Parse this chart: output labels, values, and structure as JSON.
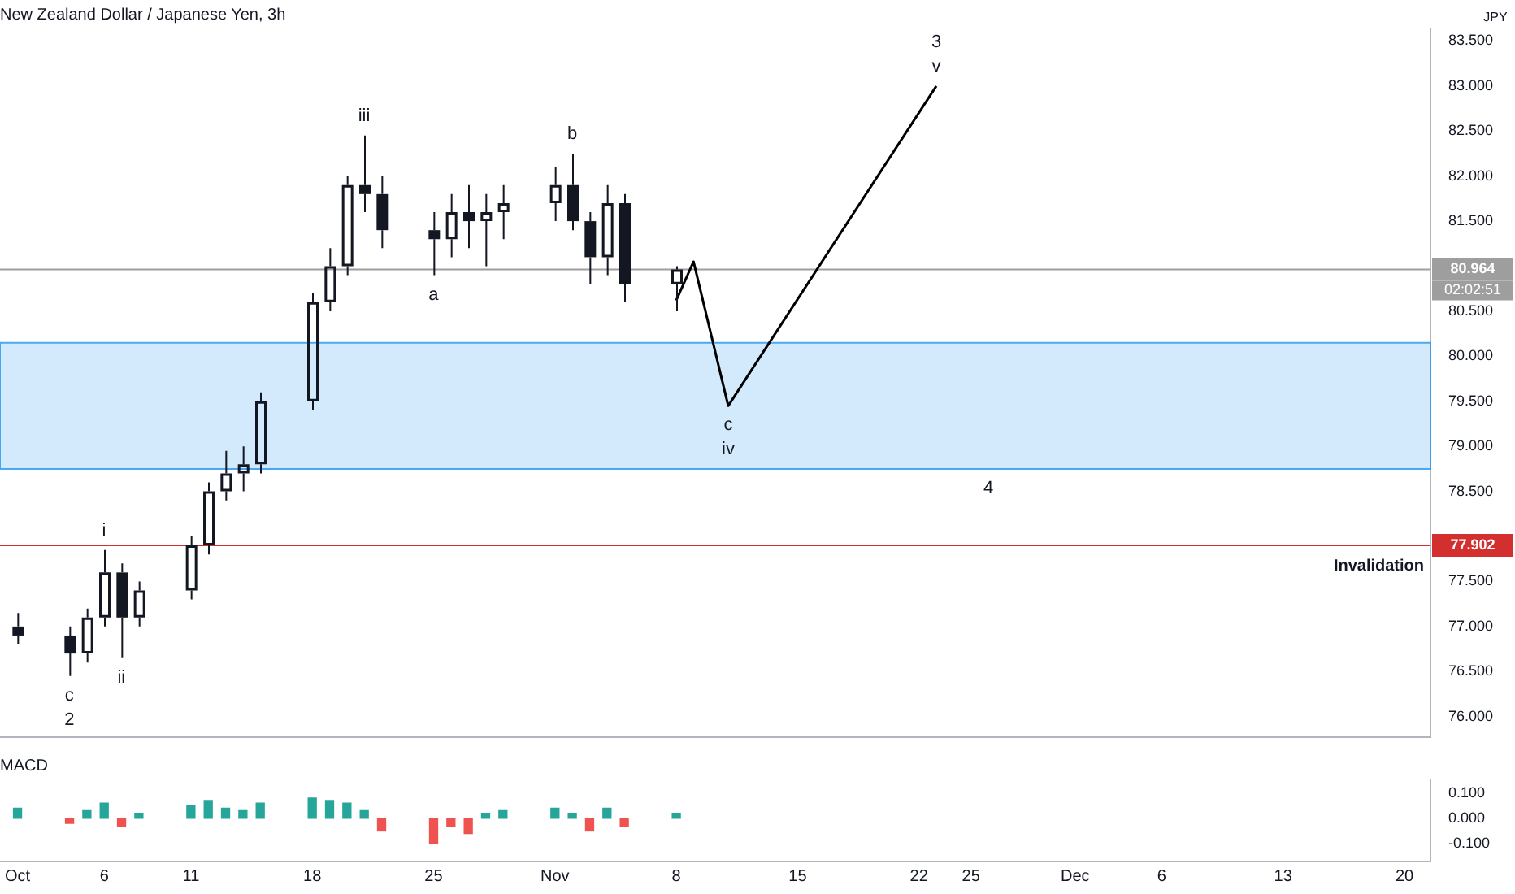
{
  "chart_data": [
    {
      "type": "candlestick",
      "title": "New Zealand Dollar / Japanese Yen, 3h",
      "ylabel": "JPY",
      "xlim": [
        "--09-30",
        "--12-21T12:00"
      ],
      "tick_labels": "y",
      "ylim": [
        75.77,
        83.63
      ],
      "yticks": [
        {
          "value": 76,
          "label": "76.000"
        },
        {
          "value": 76.5,
          "label": "76.500"
        },
        {
          "value": 77,
          "label": "77.000"
        },
        {
          "value": 77.5,
          "label": "77.500"
        },
        {
          "value": 78.5,
          "label": "78.500"
        },
        {
          "value": 79,
          "label": "79.000"
        },
        {
          "value": 79.5,
          "label": "79.500"
        },
        {
          "value": 80,
          "label": "80.000"
        },
        {
          "value": 80.5,
          "label": "80.500"
        },
        {
          "value": 81.5,
          "label": "81.500"
        },
        {
          "value": 82,
          "label": "82.000"
        },
        {
          "value": 82.5,
          "label": "82.500"
        },
        {
          "value": 83,
          "label": "83.000"
        },
        {
          "value": 83.5,
          "label": "83.500"
        }
      ],
      "grid": false,
      "legend": false,
      "series": [
        {
          "type": "candlestick",
          "color": "#131722",
          "x": [
            "--10-01",
            "--10-04",
            "--10-05",
            "--10-06",
            "--10-07",
            "--10-08",
            "--10-11",
            "--10-12",
            "--10-13",
            "--10-14",
            "--10-15",
            "--10-18",
            "--10-19",
            "--10-20",
            "--10-21",
            "--10-22",
            "--10-25",
            "--10-26",
            "--10-27",
            "--10-28",
            "--10-29",
            "--11-01",
            "--11-02",
            "--11-03",
            "--11-04",
            "--11-05",
            "--11-08"
          ],
          "ohlc": [
            [
              77.0,
              77.15,
              76.8,
              76.9
            ],
            [
              76.9,
              77.0,
              76.45,
              76.7
            ],
            [
              76.7,
              77.2,
              76.6,
              77.1
            ],
            [
              77.1,
              77.85,
              77.0,
              77.6
            ],
            [
              77.6,
              77.7,
              76.65,
              77.1
            ],
            [
              77.1,
              77.5,
              77.0,
              77.4
            ],
            [
              77.4,
              78.0,
              77.3,
              77.9
            ],
            [
              77.9,
              78.6,
              77.8,
              78.5
            ],
            [
              78.5,
              78.95,
              78.4,
              78.7
            ],
            [
              78.7,
              79.0,
              78.5,
              78.8
            ],
            [
              78.8,
              79.6,
              78.7,
              79.5
            ],
            [
              79.5,
              80.7,
              79.4,
              80.6
            ],
            [
              80.6,
              81.2,
              80.5,
              81.0
            ],
            [
              81.0,
              82.0,
              80.9,
              81.9
            ],
            [
              81.9,
              82.45,
              81.6,
              81.8
            ],
            [
              81.8,
              82.0,
              81.2,
              81.4
            ],
            [
              81.4,
              81.6,
              80.9,
              81.3
            ],
            [
              81.3,
              81.8,
              81.1,
              81.6
            ],
            [
              81.6,
              81.9,
              81.2,
              81.5
            ],
            [
              81.5,
              81.8,
              81.0,
              81.6
            ],
            [
              81.6,
              81.9,
              81.3,
              81.7
            ],
            [
              81.7,
              82.1,
              81.5,
              81.9
            ],
            [
              81.9,
              82.25,
              81.4,
              81.5
            ],
            [
              81.5,
              81.6,
              80.8,
              81.1
            ],
            [
              81.1,
              81.9,
              80.9,
              81.7
            ],
            [
              81.7,
              81.8,
              80.6,
              80.8
            ],
            [
              80.8,
              81.0,
              80.5,
              80.964
            ]
          ]
        },
        {
          "type": "line",
          "color": "#000000",
          "marker": "none",
          "line_style": "solid",
          "x": [
            "--11-08",
            "--11-09",
            "--11-11",
            "--11-23"
          ],
          "values": [
            80.62,
            81.05,
            79.45,
            83.0
          ]
        }
      ],
      "bands": [
        {
          "axis": "y",
          "from": 78.75,
          "to": 80.15,
          "color": "#2196f3"
        }
      ],
      "ref_lines": [
        {
          "axis": "y",
          "value": 80.964,
          "label": "80.964",
          "color": "#9e9e9e"
        },
        {
          "axis": "y",
          "value": 77.902,
          "label": "77.902",
          "color": "#d32f2f"
        }
      ],
      "annotations": [
        "02:02:51",
        "Invalidation",
        {
          "text": "iii",
          "x": "--10-21",
          "y": 82.45
        },
        {
          "text": "b",
          "x": "--11-02",
          "y": 82.25
        },
        {
          "text": "a",
          "x": "--10-25",
          "y": 80.9
        },
        {
          "text": "i",
          "x": "--10-06",
          "y": 77.85
        },
        {
          "text": "ii",
          "x": "--10-07",
          "y": 76.65
        },
        {
          "text": "c",
          "x": "--10-04",
          "y": 76.45
        },
        {
          "text": "2",
          "x": "--10-04",
          "y": 76.45
        },
        {
          "text": "c",
          "x": "--11-11",
          "y": 79.45
        },
        {
          "text": "iv",
          "x": "--11-11",
          "y": 79.45
        },
        {
          "text": "v",
          "x": "--11-23",
          "y": 83.0
        },
        {
          "text": "3",
          "x": "--11-23",
          "y": 83.0
        },
        {
          "text": "4",
          "x": "--11-26",
          "y": 78.75
        }
      ]
    },
    {
      "type": "bar",
      "title": "MACD",
      "xlim": [
        "--09-30",
        "--12-21T12:00"
      ],
      "xticks": [
        {
          "value": "--10-01",
          "label": "Oct"
        },
        {
          "value": "--10-06",
          "label": "6"
        },
        {
          "value": "--10-11",
          "label": "11"
        },
        {
          "value": "--10-18",
          "label": "18"
        },
        {
          "value": "--10-25",
          "label": "25"
        },
        {
          "value": "--11-01",
          "label": "Nov"
        },
        {
          "value": "--11-08",
          "label": "8"
        },
        {
          "value": "--11-15",
          "label": "15"
        },
        {
          "value": "--11-22",
          "label": "22"
        },
        {
          "value": "--11-25",
          "label": "25"
        },
        {
          "value": "--12-01",
          "label": "Dec"
        },
        {
          "value": "--12-06",
          "label": "6"
        },
        {
          "value": "--12-13",
          "label": "13"
        },
        {
          "value": "--12-20",
          "label": "20"
        }
      ],
      "ylim": [
        -0.17,
        0.15
      ],
      "yticks": [
        {
          "value": -0.1,
          "label": "-0.100"
        },
        {
          "value": 0,
          "label": "0.000"
        },
        {
          "value": 0.1,
          "label": "0.100"
        }
      ],
      "grid": false,
      "legend": false,
      "x": [
        "--10-01",
        "--10-04",
        "--10-05",
        "--10-06",
        "--10-07",
        "--10-08",
        "--10-11",
        "--10-12",
        "--10-13",
        "--10-14",
        "--10-15",
        "--10-18",
        "--10-19",
        "--10-20",
        "--10-21",
        "--10-22",
        "--10-25",
        "--10-26",
        "--10-27",
        "--10-28",
        "--10-29",
        "--11-01",
        "--11-02",
        "--11-03",
        "--11-04",
        "--11-05",
        "--11-08"
      ],
      "values": [
        0.04,
        -0.02,
        0.03,
        0.06,
        -0.03,
        0.02,
        0.05,
        0.07,
        0.04,
        0.03,
        0.06,
        0.08,
        0.07,
        0.06,
        0.03,
        -0.05,
        -0.1,
        -0.03,
        -0.06,
        0.02,
        0.03,
        0.04,
        0.02,
        -0.05,
        0.04,
        -0.03,
        0.02
      ],
      "colors": [
        "#26a69a",
        "#ef5350",
        "#26a69a",
        "#26a69a",
        "#ef5350",
        "#26a69a",
        "#26a69a",
        "#26a69a",
        "#26a69a",
        "#26a69a",
        "#26a69a",
        "#26a69a",
        "#26a69a",
        "#26a69a",
        "#26a69a",
        "#ef5350",
        "#ef5350",
        "#ef5350",
        "#ef5350",
        "#26a69a",
        "#26a69a",
        "#26a69a",
        "#26a69a",
        "#ef5350",
        "#26a69a",
        "#ef5350",
        "#26a69a"
      ]
    }
  ]
}
